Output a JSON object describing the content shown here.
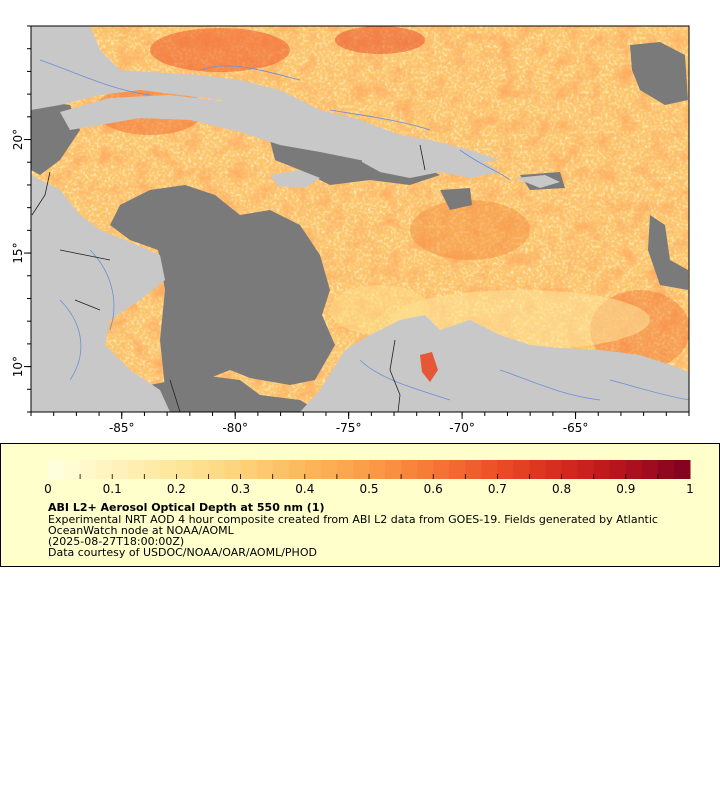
{
  "map": {
    "lon_ticks": [
      "-85°",
      "-80°",
      "-75°",
      "-70°",
      "-65°"
    ],
    "lat_ticks": [
      "20°",
      "15°",
      "10°"
    ],
    "extent": {
      "lon_min": -89,
      "lon_max": -60,
      "lat_min": 8,
      "lat_max": 25
    },
    "colors": {
      "ocean_aod_base": "#fcc56c",
      "land": "#c8c8c8",
      "no_data": "#7a7a7a",
      "rivers": "#6b8fd6",
      "borders": "#222222"
    }
  },
  "legend": {
    "ticks": [
      "0",
      "0.1",
      "0.2",
      "0.3",
      "0.4",
      "0.5",
      "0.6",
      "0.7",
      "0.8",
      "0.9",
      "1"
    ],
    "range": [
      0,
      1
    ],
    "colors": [
      "#ffffe0",
      "#fff3bd",
      "#fee69a",
      "#fdd27a",
      "#fdb85c",
      "#fc9b47",
      "#f77736",
      "#ea4f26",
      "#d42a1e",
      "#b3121d",
      "#7e0121"
    ],
    "title": "ABI L2+ Aerosol Optical Depth at 550 nm (1)",
    "line1": "Experimental NRT AOD 4 hour composite created from ABI L2 data from GOES-19. Fields generated by Atlantic",
    "line2": "OceanWatch node at NOAA/AOML",
    "line3": "(2025-08-27T18:00:00Z)",
    "line4": "Data courtesy of USDOC/NOAA/OAR/AOML/PHOD"
  }
}
